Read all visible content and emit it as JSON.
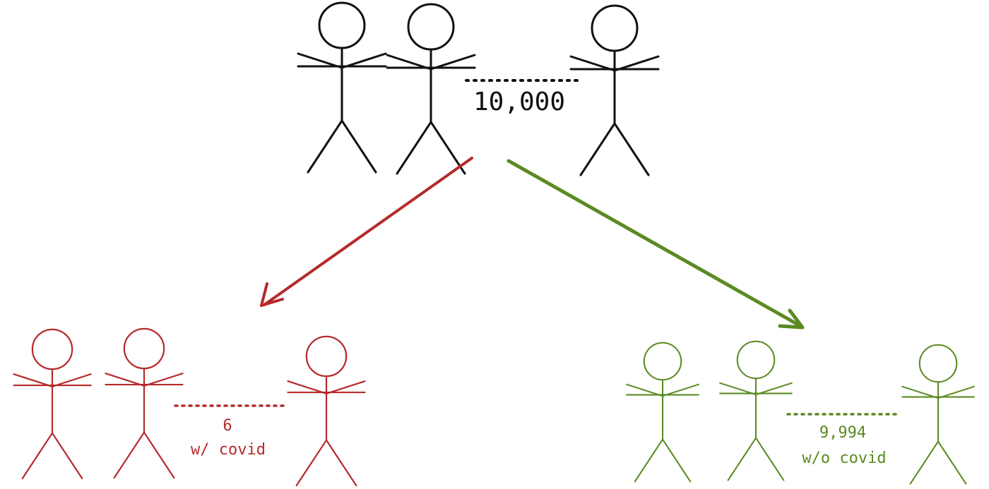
{
  "colors": {
    "total": "#111111",
    "positive": "#b52a2a",
    "negative": "#5a8a22"
  },
  "groups": {
    "total": {
      "count_label": "10,000"
    },
    "positive": {
      "count_label": "6",
      "description": "w/ covid"
    },
    "negative": {
      "count_label": "9,994",
      "description": "w/o covid"
    }
  }
}
